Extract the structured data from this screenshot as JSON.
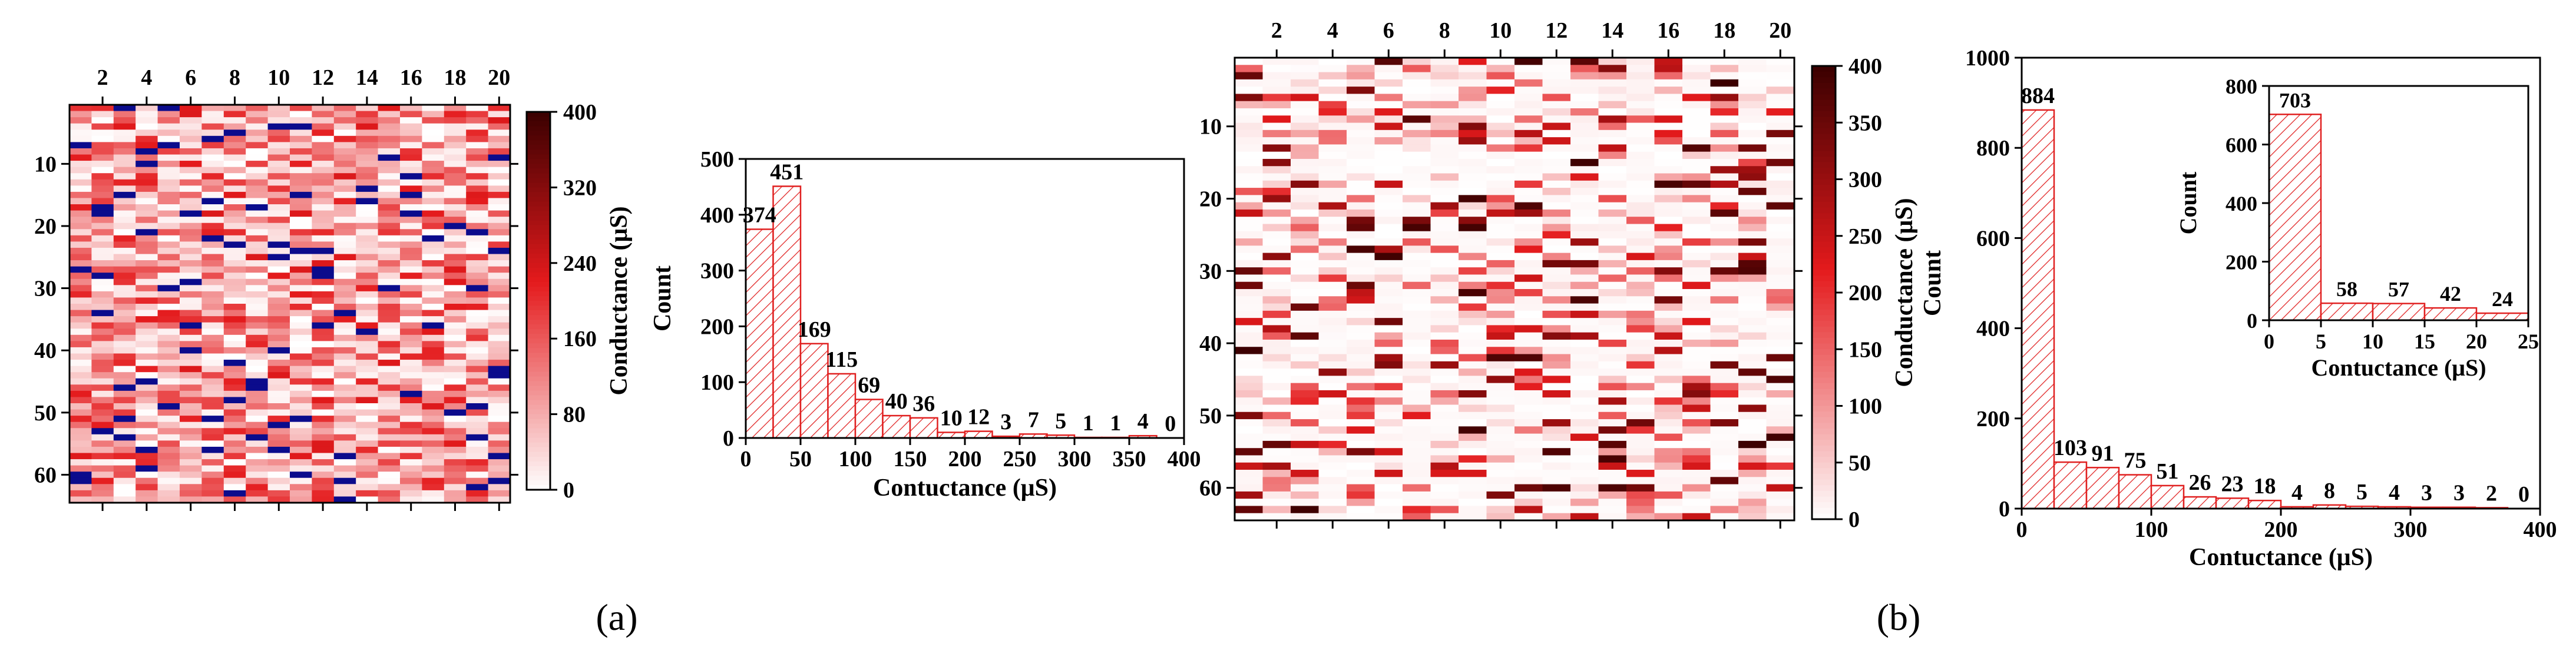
{
  "panel_labels": [
    "(a)",
    "(b)"
  ],
  "colors": {
    "heat_low": "#ffffff",
    "heat_mid": "#e41a1c",
    "heat_high": "#3a0000",
    "missing": "#0b0b8c",
    "bar_stroke": "#e02020"
  },
  "chart_data": [
    {
      "type": "heatmap",
      "panel": "a",
      "x_ticks": [
        2,
        4,
        6,
        8,
        10,
        12,
        14,
        16,
        18,
        20
      ],
      "y_ticks": [
        10,
        20,
        30,
        40,
        50,
        60
      ],
      "columns": 20,
      "rows": 64,
      "colorbar": {
        "label": "Conductance (μS)",
        "ticks": [
          0,
          80,
          160,
          240,
          320,
          400
        ],
        "range": [
          0,
          400
        ]
      },
      "has_missing_cells": true
    },
    {
      "type": "bar",
      "panel": "a",
      "xlabel": "Contuctance (μS)",
      "ylabel": "Count",
      "xlim": [
        0,
        400
      ],
      "ylim": [
        0,
        500
      ],
      "x_ticks": [
        0,
        50,
        100,
        150,
        200,
        250,
        300,
        350,
        400
      ],
      "y_ticks": [
        0,
        100,
        200,
        300,
        400,
        500
      ],
      "bin_width": 25,
      "values": [
        374,
        451,
        169,
        115,
        69,
        40,
        36,
        10,
        12,
        3,
        7,
        5,
        1,
        1,
        4,
        0
      ]
    },
    {
      "type": "heatmap",
      "panel": "b",
      "x_ticks": [
        2,
        4,
        6,
        8,
        10,
        12,
        14,
        16,
        18,
        20
      ],
      "y_ticks": [
        10,
        20,
        30,
        40,
        50,
        60
      ],
      "columns": 20,
      "rows": 64,
      "colorbar": {
        "label": "Conductance (μS)",
        "ticks": [
          0,
          50,
          100,
          150,
          200,
          250,
          300,
          350,
          400
        ],
        "range": [
          0,
          400
        ]
      },
      "has_missing_cells": false
    },
    {
      "type": "bar",
      "panel": "b",
      "xlabel": "Contuctance (μS)",
      "ylabel": "Count",
      "xlim": [
        0,
        400
      ],
      "ylim": [
        0,
        1000
      ],
      "x_ticks": [
        0,
        100,
        200,
        300,
        400
      ],
      "y_ticks": [
        0,
        200,
        400,
        600,
        800,
        1000
      ],
      "bin_width": 25,
      "values": [
        884,
        103,
        91,
        75,
        51,
        26,
        23,
        18,
        4,
        8,
        5,
        4,
        3,
        3,
        2,
        0
      ],
      "inset": {
        "xlabel": "Contuctance (μS)",
        "ylabel": "Count",
        "xlim": [
          0,
          25
        ],
        "ylim": [
          0,
          800
        ],
        "x_ticks": [
          0,
          5,
          10,
          15,
          20,
          25
        ],
        "y_ticks": [
          0,
          200,
          400,
          600,
          800
        ],
        "bin_width": 5,
        "values": [
          703,
          58,
          57,
          42,
          24
        ]
      }
    }
  ]
}
